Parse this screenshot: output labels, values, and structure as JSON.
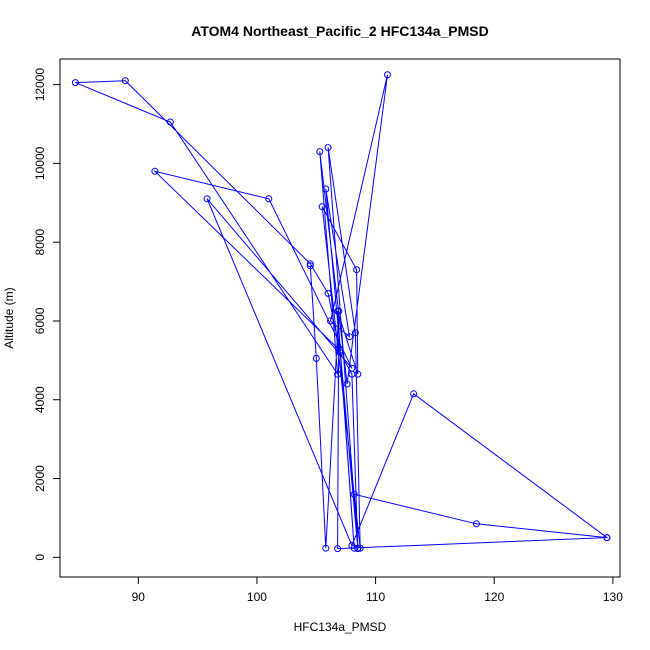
{
  "chart_data": {
    "type": "line",
    "title": "ATOM4 Northeast_Pacific_2 HFC134a_PMSD",
    "xlabel": "HFC134a_PMSD",
    "ylabel": "Altitude (m)",
    "xlim": [
      83.4,
      130.6
    ],
    "ylim": [
      -500,
      12650
    ],
    "xticks": [
      90,
      100,
      110,
      120,
      130
    ],
    "yticks": [
      0,
      2000,
      4000,
      6000,
      8000,
      10000,
      12000
    ],
    "x_tick_labels": [
      "90",
      "100",
      "110",
      "120",
      "130"
    ],
    "y_tick_labels": [
      "0",
      "2000",
      "4000",
      "6000",
      "8000",
      "10000",
      "12000"
    ],
    "grid": false,
    "legend": "none",
    "colors": {
      "series": "#0000ff",
      "axis": "#000000"
    },
    "series": [
      {
        "points": [
          [
            129.5,
            500
          ],
          [
            118.5,
            850
          ],
          [
            108.2,
            1600
          ],
          [
            108.5,
            220
          ],
          [
            108.0,
            4650
          ],
          [
            107.0,
            5200
          ],
          [
            106.0,
            6700
          ],
          [
            104.5,
            7450
          ],
          [
            88.9,
            12100
          ],
          [
            84.7,
            12050
          ],
          [
            92.7,
            11050
          ],
          [
            106.8,
            4650
          ],
          [
            105.3,
            10300
          ],
          [
            107.6,
            4400
          ],
          [
            111.0,
            12250
          ],
          [
            106.2,
            6000
          ],
          [
            107.8,
            5600
          ],
          [
            105.8,
            9350
          ],
          [
            108.5,
            230
          ],
          [
            106.0,
            10400
          ],
          [
            108.3,
            5700
          ],
          [
            108.7,
            230
          ],
          [
            105.5,
            8900
          ],
          [
            108.4,
            7300
          ],
          [
            108.5,
            4650
          ],
          [
            106.8,
            6250
          ],
          [
            108.2,
            230
          ],
          [
            107.0,
            5250
          ],
          [
            91.4,
            9800
          ],
          [
            101.0,
            9100
          ],
          [
            108.0,
            4800
          ],
          [
            95.8,
            9100
          ],
          [
            108.0,
            300
          ],
          [
            113.2,
            4150
          ],
          [
            129.5,
            500
          ],
          [
            106.8,
            220
          ],
          [
            106.9,
            6250
          ],
          [
            105.8,
            230
          ],
          [
            105.0,
            5050
          ],
          [
            104.5,
            7400
          ]
        ]
      }
    ]
  }
}
